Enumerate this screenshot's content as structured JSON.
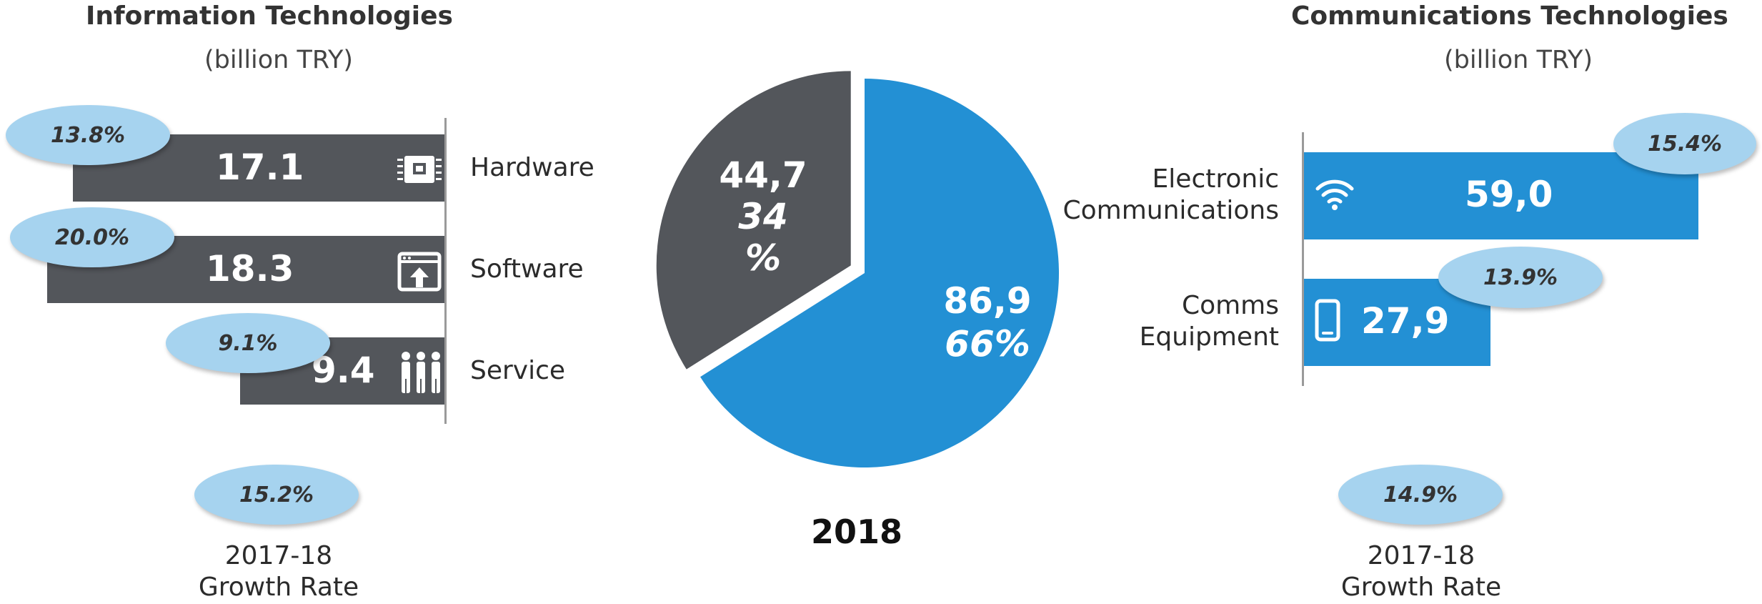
{
  "chart_data": [
    {
      "type": "bar",
      "orientation": "horizontal",
      "title": "Information Technologies",
      "subtitle": "(billion TRY)",
      "categories": [
        "Hardware",
        "Software",
        "Service"
      ],
      "values": [
        17.1,
        18.3,
        9.4
      ],
      "value_labels": [
        "17.1",
        "18.3",
        "9.4"
      ],
      "growth_rates": [
        "13.8%",
        "20.0%",
        "9.1%"
      ],
      "total_growth_rate": "15.2%",
      "growth_label_line1": "2017-18",
      "growth_label_line2": "Growth Rate",
      "bar_color": "#53565b",
      "direction": "bars extend left from axis"
    },
    {
      "type": "pie",
      "title": "2018",
      "slices": [
        {
          "value": 44.7,
          "value_label": "44,7",
          "percent": 34,
          "percent_label_a": "34",
          "percent_label_b": "%",
          "color": "#53565b",
          "exploded": true
        },
        {
          "value": 86.9,
          "value_label": "86,9",
          "percent": 66,
          "percent_label": "66%",
          "color": "#2390d4",
          "exploded": false
        }
      ]
    },
    {
      "type": "bar",
      "orientation": "horizontal",
      "title": "Communications Technologies",
      "subtitle": "(billion TRY)",
      "categories": [
        "Electronic Communications",
        "Comms Equipment"
      ],
      "category_lines": [
        [
          "Electronic",
          "Communications"
        ],
        [
          "Comms",
          "Equipment"
        ]
      ],
      "values": [
        59.0,
        27.9
      ],
      "value_labels": [
        "59,0",
        "27,9"
      ],
      "growth_rates": [
        "15.4%",
        "13.9%"
      ],
      "total_growth_rate": "14.9%",
      "growth_label_line1": "2017-18",
      "growth_label_line2": "Growth Rate",
      "bar_color": "#2390d4",
      "direction": "bars extend right from axis"
    }
  ]
}
